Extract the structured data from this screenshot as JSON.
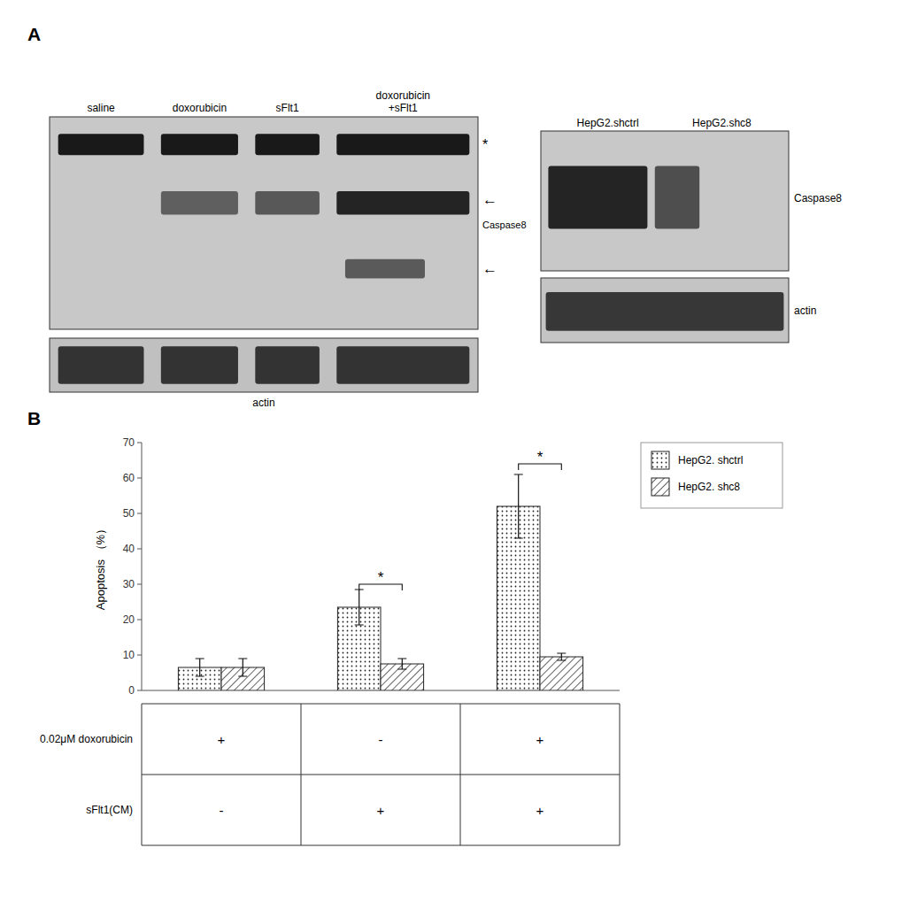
{
  "chart_data": [
    {
      "type": "blot",
      "title": "A",
      "categories": [
        "saline",
        "doxorubicin",
        "sFlt1",
        "doxorubicin\n+sFlt1"
      ],
      "annotations": [
        "*",
        "←",
        "Caspase8",
        "←",
        "actin"
      ]
    },
    {
      "type": "blot",
      "categories": [
        "HepG2.shctrl",
        "HepG2.shc8"
      ],
      "annotations": [
        "Caspase8",
        "actin"
      ]
    },
    {
      "type": "bar",
      "title": "B",
      "ylabel": "Apoptosis （%）",
      "categories": [
        null,
        null,
        null
      ],
      "series": [
        {
          "name": "HepG2. shctrl",
          "values": [
            6.5,
            23.5,
            52.0
          ],
          "errors": [
            2.5,
            5.0,
            9.0
          ]
        },
        {
          "name": "HepG2. shc8",
          "values": [
            6.5,
            7.5,
            9.5
          ],
          "errors": [
            2.5,
            1.5,
            1.0
          ]
        }
      ],
      "ylim": [
        0,
        70
      ],
      "yticks": [
        0,
        10,
        20,
        30,
        40,
        50,
        60,
        70
      ],
      "legend": "right",
      "annotations": [
        {
          "text": "*",
          "category": 1,
          "y": 30
        },
        {
          "text": "*",
          "category": 2,
          "y": 64
        }
      ],
      "table": {
        "rows": [
          "0.02μM doxorubicin",
          "sFlt1(CM)"
        ],
        "cells": [
          [
            "+",
            "-",
            "+"
          ],
          [
            "-",
            "+",
            "+"
          ]
        ]
      }
    }
  ]
}
